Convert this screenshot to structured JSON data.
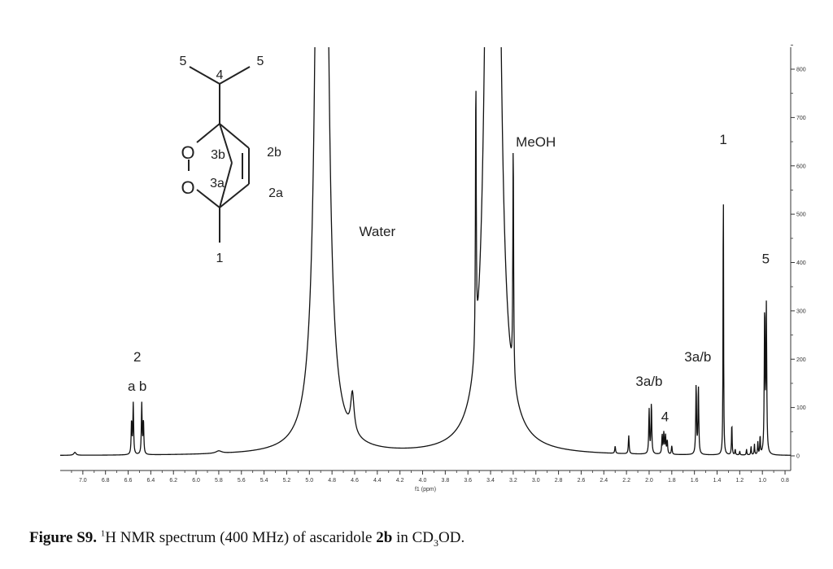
{
  "chart_data": {
    "type": "line",
    "xlabel": "f1 (ppm)",
    "x_ticks": [
      "7.0",
      "6.8",
      "6.6",
      "6.4",
      "6.2",
      "6.0",
      "5.8",
      "5.6",
      "5.4",
      "5.2",
      "5.0",
      "4.8",
      "4.6",
      "4.4",
      "4.2",
      "4.0",
      "3.8",
      "3.6",
      "3.4",
      "3.2",
      "3.0",
      "2.8",
      "2.6",
      "2.4",
      "2.2",
      "2.0",
      "1.8",
      "1.6",
      "1.4",
      "1.2",
      "1.0",
      "0.8"
    ],
    "y_ticks": [
      "0",
      "100",
      "200",
      "300",
      "400",
      "500",
      "600",
      "700",
      "800"
    ],
    "xlim": [
      7.2,
      0.75
    ],
    "ylim": [
      -10,
      860
    ],
    "peaks": [
      {
        "x": 7.07,
        "h": 6,
        "w": 0.012
      },
      {
        "x": 6.57,
        "h": 70,
        "w": 0.004
      },
      {
        "x": 6.555,
        "h": 105,
        "w": 0.004
      },
      {
        "x": 6.48,
        "h": 105,
        "w": 0.004
      },
      {
        "x": 6.465,
        "h": 70,
        "w": 0.004
      },
      {
        "x": 5.8,
        "h": 5,
        "w": 0.03
      },
      {
        "x": 4.89,
        "h": 6000,
        "w": 0.025
      },
      {
        "x": 4.62,
        "h": 80,
        "w": 0.018
      },
      {
        "x": 3.53,
        "h": 560,
        "w": 0.004
      },
      {
        "x": 3.38,
        "h": 6000,
        "w": 0.03
      },
      {
        "x": 3.2,
        "h": 490,
        "w": 0.004
      },
      {
        "x": 2.3,
        "h": 15,
        "w": 0.004
      },
      {
        "x": 2.18,
        "h": 38,
        "w": 0.004
      },
      {
        "x": 2.0,
        "h": 92,
        "w": 0.004
      },
      {
        "x": 1.98,
        "h": 105,
        "w": 0.004
      },
      {
        "x": 1.885,
        "h": 40,
        "w": 0.004
      },
      {
        "x": 1.87,
        "h": 44,
        "w": 0.004
      },
      {
        "x": 1.855,
        "h": 38,
        "w": 0.004
      },
      {
        "x": 1.84,
        "h": 28,
        "w": 0.004
      },
      {
        "x": 1.8,
        "h": 18,
        "w": 0.004
      },
      {
        "x": 1.585,
        "h": 145,
        "w": 0.004
      },
      {
        "x": 1.565,
        "h": 140,
        "w": 0.004
      },
      {
        "x": 1.345,
        "h": 612,
        "w": 0.0025
      },
      {
        "x": 1.27,
        "h": 68,
        "w": 0.003
      },
      {
        "x": 1.24,
        "h": 12,
        "w": 0.003
      },
      {
        "x": 1.2,
        "h": 8,
        "w": 0.003
      },
      {
        "x": 1.14,
        "h": 12,
        "w": 0.003
      },
      {
        "x": 1.1,
        "h": 18,
        "w": 0.003
      },
      {
        "x": 1.07,
        "h": 22,
        "w": 0.003
      },
      {
        "x": 1.04,
        "h": 26,
        "w": 0.003
      },
      {
        "x": 1.02,
        "h": 40,
        "w": 0.003
      },
      {
        "x": 0.98,
        "h": 300,
        "w": 0.004
      },
      {
        "x": 0.965,
        "h": 300,
        "w": 0.004
      }
    ],
    "annotations": [
      {
        "text": "2",
        "x": 6.52,
        "y": 195
      },
      {
        "text": "a",
        "x": 6.57,
        "y": 135
      },
      {
        "text": "b",
        "x": 6.47,
        "y": 135
      },
      {
        "text": "Water",
        "x": 4.4,
        "y": 455
      },
      {
        "text": "MeOH",
        "x": 3.0,
        "y": 640
      },
      {
        "text": "3a/b",
        "x": 2.0,
        "y": 145
      },
      {
        "text": "4",
        "x": 1.86,
        "y": 72
      },
      {
        "text": "3a/b",
        "x": 1.57,
        "y": 195
      },
      {
        "text": "1",
        "x": 1.345,
        "y": 645
      },
      {
        "text": "5",
        "x": 0.97,
        "y": 398
      }
    ]
  },
  "structure": {
    "labels": [
      "5",
      "4",
      "5",
      "O",
      "O",
      "3b",
      "3a",
      "2b",
      "2a",
      "1"
    ]
  },
  "caption": {
    "label": "Figure S9.",
    "sup": "1",
    "text_part1": "H NMR spectrum (400 MHz) of ascaridole ",
    "compound": "2b",
    "text_part2": " in CD",
    "sub": "3",
    "text_part3": "OD."
  }
}
